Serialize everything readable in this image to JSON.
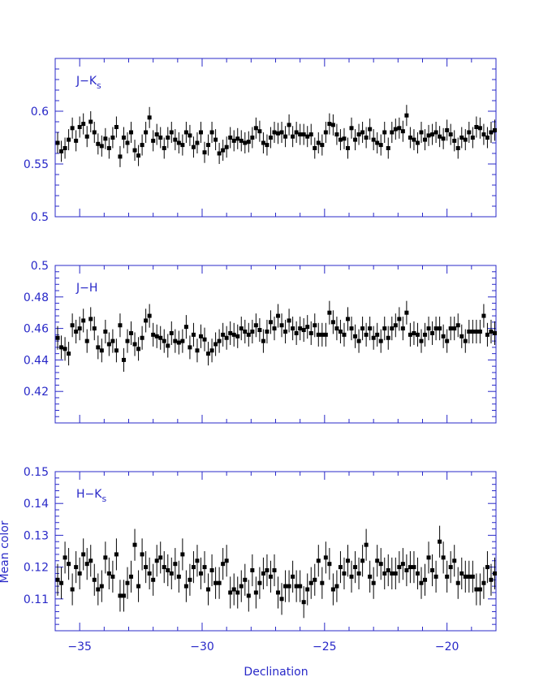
{
  "colors": {
    "axis": "#2828c8",
    "marker": "#000000",
    "background": "#ffffff"
  },
  "chart_data": {
    "type": "scatter",
    "xlabel": "Declination",
    "ylabel": "Mean color",
    "xlim": [
      -36,
      -18
    ],
    "x_ticks": [
      -35,
      -30,
      -25,
      -20
    ],
    "x_tick_labels": [
      "−35",
      "−30",
      "−25",
      "−20"
    ],
    "marker": "filled square with vertical error bars",
    "panels": [
      {
        "label": "J−K",
        "label_sub": "s",
        "ylim": [
          0.5,
          0.65
        ],
        "y_ticks": [
          0.5,
          0.55,
          0.6
        ],
        "y_tick_labels": [
          "0.5",
          "0.55",
          "0.6"
        ],
        "error": 0.01,
        "x_start": -35.9,
        "x_step": 0.15,
        "values": [
          0.57,
          0.562,
          0.565,
          0.573,
          0.584,
          0.572,
          0.585,
          0.588,
          0.576,
          0.59,
          0.58,
          0.569,
          0.567,
          0.574,
          0.565,
          0.575,
          0.585,
          0.557,
          0.575,
          0.57,
          0.58,
          0.563,
          0.558,
          0.568,
          0.58,
          0.594,
          0.572,
          0.578,
          0.575,
          0.565,
          0.575,
          0.58,
          0.573,
          0.57,
          0.568,
          0.58,
          0.577,
          0.566,
          0.57,
          0.58,
          0.561,
          0.568,
          0.58,
          0.573,
          0.56,
          0.563,
          0.566,
          0.575,
          0.572,
          0.574,
          0.572,
          0.57,
          0.571,
          0.575,
          0.584,
          0.581,
          0.57,
          0.568,
          0.575,
          0.58,
          0.579,
          0.58,
          0.576,
          0.587,
          0.576,
          0.58,
          0.578,
          0.578,
          0.576,
          0.578,
          0.565,
          0.57,
          0.568,
          0.58,
          0.588,
          0.587,
          0.578,
          0.573,
          0.574,
          0.565,
          0.584,
          0.573,
          0.578,
          0.58,
          0.575,
          0.583,
          0.573,
          0.57,
          0.568,
          0.58,
          0.565,
          0.58,
          0.583,
          0.584,
          0.581,
          0.596,
          0.575,
          0.573,
          0.57,
          0.58,
          0.573,
          0.577,
          0.578,
          0.58,
          0.576,
          0.574,
          0.582,
          0.578,
          0.572,
          0.565,
          0.575,
          0.573,
          0.58,
          0.575,
          0.585,
          0.584,
          0.578,
          0.575,
          0.58,
          0.582,
          0.585,
          0.572,
          0.572,
          0.572,
          0.572,
          0.57,
          0.564,
          0.561,
          0.572,
          0.58,
          0.578,
          0.575,
          0.58,
          0.582
        ]
      },
      {
        "label": "J−H",
        "label_sub": "",
        "ylim": [
          0.4,
          0.5
        ],
        "y_ticks": [
          0.42,
          0.44,
          0.46,
          0.48,
          0.5
        ],
        "y_tick_labels": [
          "0.42",
          "0.44",
          "0.46",
          "0.48",
          "0.5"
        ],
        "error": 0.0075,
        "x_start": -35.9,
        "x_step": 0.15,
        "values": [
          0.454,
          0.448,
          0.447,
          0.444,
          0.462,
          0.458,
          0.46,
          0.465,
          0.452,
          0.466,
          0.46,
          0.448,
          0.446,
          0.458,
          0.45,
          0.452,
          0.446,
          0.462,
          0.44,
          0.452,
          0.457,
          0.45,
          0.447,
          0.454,
          0.465,
          0.468,
          0.456,
          0.455,
          0.454,
          0.452,
          0.449,
          0.457,
          0.452,
          0.451,
          0.452,
          0.461,
          0.448,
          0.456,
          0.446,
          0.455,
          0.453,
          0.444,
          0.446,
          0.45,
          0.452,
          0.456,
          0.454,
          0.457,
          0.456,
          0.455,
          0.46,
          0.458,
          0.456,
          0.458,
          0.462,
          0.459,
          0.452,
          0.458,
          0.464,
          0.46,
          0.468,
          0.462,
          0.458,
          0.465,
          0.46,
          0.457,
          0.46,
          0.459,
          0.461,
          0.457,
          0.462,
          0.456,
          0.456,
          0.456,
          0.47,
          0.464,
          0.46,
          0.458,
          0.456,
          0.466,
          0.46,
          0.455,
          0.452,
          0.46,
          0.456,
          0.46,
          0.454,
          0.456,
          0.452,
          0.46,
          0.454,
          0.46,
          0.462,
          0.466,
          0.46,
          0.47,
          0.456,
          0.457,
          0.456,
          0.452,
          0.456,
          0.46,
          0.457,
          0.46,
          0.46,
          0.455,
          0.452,
          0.46,
          0.46,
          0.462,
          0.455,
          0.452,
          0.458,
          0.458,
          0.458,
          0.458,
          0.468,
          0.456,
          0.458,
          0.457,
          0.459,
          0.462,
          0.455,
          0.457,
          0.455,
          0.456,
          0.451,
          0.448,
          0.456,
          0.46,
          0.461,
          0.458,
          0.459,
          0.46
        ]
      },
      {
        "label": "H−K",
        "label_sub": "s",
        "ylim": [
          0.1,
          0.15
        ],
        "y_ticks": [
          0.11,
          0.12,
          0.13,
          0.14,
          0.15
        ],
        "y_tick_labels": [
          "0.11",
          "0.12",
          "0.13",
          "0.14",
          "0.15"
        ],
        "error": 0.005,
        "x_start": -35.9,
        "x_step": 0.15,
        "values": [
          0.116,
          0.115,
          0.123,
          0.121,
          0.113,
          0.12,
          0.118,
          0.124,
          0.121,
          0.122,
          0.116,
          0.113,
          0.114,
          0.123,
          0.118,
          0.117,
          0.124,
          0.111,
          0.111,
          0.115,
          0.117,
          0.127,
          0.114,
          0.124,
          0.12,
          0.118,
          0.116,
          0.122,
          0.123,
          0.12,
          0.119,
          0.118,
          0.121,
          0.117,
          0.124,
          0.114,
          0.116,
          0.12,
          0.122,
          0.118,
          0.12,
          0.113,
          0.119,
          0.115,
          0.115,
          0.121,
          0.122,
          0.112,
          0.113,
          0.112,
          0.114,
          0.116,
          0.111,
          0.119,
          0.112,
          0.115,
          0.118,
          0.119,
          0.117,
          0.119,
          0.112,
          0.11,
          0.114,
          0.114,
          0.117,
          0.114,
          0.114,
          0.109,
          0.113,
          0.115,
          0.116,
          0.122,
          0.115,
          0.123,
          0.121,
          0.113,
          0.114,
          0.12,
          0.118,
          0.122,
          0.117,
          0.12,
          0.118,
          0.122,
          0.127,
          0.117,
          0.115,
          0.122,
          0.121,
          0.118,
          0.119,
          0.118,
          0.118,
          0.12,
          0.121,
          0.119,
          0.12,
          0.12,
          0.118,
          0.115,
          0.116,
          0.123,
          0.119,
          0.117,
          0.128,
          0.123,
          0.117,
          0.12,
          0.122,
          0.115,
          0.118,
          0.117,
          0.117,
          0.117,
          0.113,
          0.113,
          0.115,
          0.12,
          0.116,
          0.118,
          0.122,
          0.12,
          0.117,
          0.119,
          0.118
        ]
      }
    ]
  }
}
